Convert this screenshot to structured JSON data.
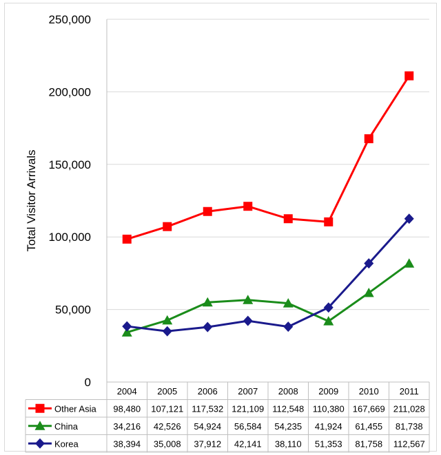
{
  "chart_data": {
    "type": "line",
    "title": "",
    "xlabel": "",
    "ylabel": "Total Visitor Arrivals",
    "ylim": [
      0,
      250000
    ],
    "yticks": [
      0,
      50000,
      100000,
      150000,
      200000,
      250000
    ],
    "ytick_labels": [
      "0",
      "50,000",
      "100,000",
      "150,000",
      "200,000",
      "250,000"
    ],
    "grid": "horizontal",
    "legend": "data table below chart",
    "categories": [
      "2004",
      "2005",
      "2006",
      "2007",
      "2008",
      "2009",
      "2010",
      "2011"
    ],
    "series": [
      {
        "name": "Other Asia",
        "color": "#ff0000",
        "marker": "square",
        "values": [
          98480,
          107121,
          117532,
          121109,
          112548,
          110380,
          167669,
          211028
        ],
        "labels": [
          "98,480",
          "107,121",
          "117,532",
          "121,109",
          "112,548",
          "110,380",
          "167,669",
          "211,028"
        ]
      },
      {
        "name": "China",
        "color": "#1a8c1a",
        "marker": "triangle",
        "values": [
          34216,
          42526,
          54924,
          56584,
          54235,
          41924,
          61455,
          81738
        ],
        "labels": [
          "34,216",
          "42,526",
          "54,924",
          "56,584",
          "54,235",
          "41,924",
          "61,455",
          "81,738"
        ]
      },
      {
        "name": "Korea",
        "color": "#1a1a8c",
        "marker": "diamond",
        "values": [
          38394,
          35008,
          37912,
          42141,
          38110,
          51353,
          81758,
          112567
        ],
        "labels": [
          "38,394",
          "35,008",
          "37,912",
          "42,141",
          "38,110",
          "51,353",
          "81,758",
          "112,567"
        ]
      }
    ]
  }
}
